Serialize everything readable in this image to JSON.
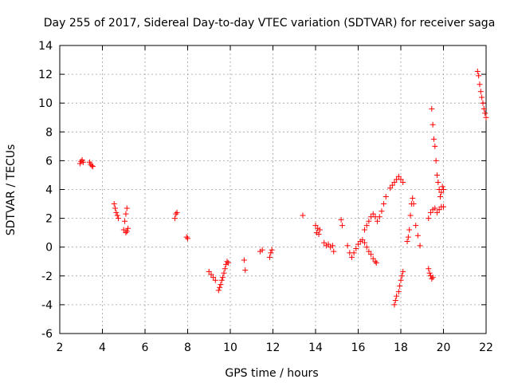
{
  "chart_data": {
    "type": "scatter",
    "title": "Day 255 of 2017, Sidereal Day-to-day VTEC variation (SDTVAR) for receiver saga",
    "xlabel": "GPS time / hours",
    "ylabel": "SDTVAR / TECUs",
    "xlim": [
      2,
      22
    ],
    "ylim": [
      -6,
      14
    ],
    "xticks": [
      2,
      4,
      6,
      8,
      10,
      12,
      14,
      16,
      18,
      20,
      22
    ],
    "yticks": [
      -6,
      -4,
      -2,
      0,
      2,
      4,
      6,
      8,
      10,
      12,
      14
    ],
    "grid": true,
    "marker": "+",
    "color": "#ff0000",
    "series": [
      {
        "name": "SDTVAR",
        "segments": [
          [
            [
              2.95,
              5.8
            ],
            [
              3.0,
              5.95
            ],
            [
              3.05,
              6.05
            ],
            [
              3.1,
              5.9
            ]
          ],
          [
            [
              3.4,
              5.9
            ],
            [
              3.45,
              5.75
            ],
            [
              3.5,
              5.65
            ],
            [
              3.55,
              5.6
            ]
          ],
          [
            [
              4.55,
              3.0
            ],
            [
              4.6,
              2.7
            ],
            [
              4.65,
              2.4
            ],
            [
              4.7,
              2.2
            ],
            [
              4.75,
              2.0
            ]
          ],
          [
            [
              5.0,
              1.2
            ],
            [
              5.05,
              1.8
            ],
            [
              5.1,
              2.3
            ],
            [
              5.15,
              2.7
            ],
            [
              5.1,
              1.0
            ],
            [
              5.15,
              1.1
            ],
            [
              5.2,
              1.3
            ]
          ],
          [
            [
              7.4,
              2.0
            ],
            [
              7.45,
              2.3
            ],
            [
              7.5,
              2.4
            ]
          ],
          [
            [
              7.95,
              0.7
            ],
            [
              8.0,
              0.6
            ]
          ],
          [
            [
              9.0,
              -1.7
            ],
            [
              9.1,
              -1.9
            ],
            [
              9.2,
              -2.1
            ],
            [
              9.3,
              -2.3
            ]
          ],
          [
            [
              9.45,
              -3.0
            ],
            [
              9.5,
              -2.8
            ],
            [
              9.55,
              -2.6
            ],
            [
              9.6,
              -2.3
            ],
            [
              9.65,
              -2.1
            ],
            [
              9.7,
              -1.8
            ],
            [
              9.75,
              -1.5
            ],
            [
              9.8,
              -1.2
            ],
            [
              9.85,
              -1.0
            ],
            [
              9.9,
              -1.1
            ]
          ],
          [
            [
              10.65,
              -0.9
            ],
            [
              10.7,
              -1.6
            ]
          ],
          [
            [
              11.4,
              -0.3
            ],
            [
              11.5,
              -0.2
            ]
          ],
          [
            [
              11.85,
              -0.7
            ],
            [
              11.9,
              -0.4
            ],
            [
              11.95,
              -0.2
            ]
          ],
          [
            [
              13.4,
              2.2
            ]
          ],
          [
            [
              14.0,
              1.5
            ],
            [
              14.05,
              1.0
            ],
            [
              14.1,
              1.3
            ],
            [
              14.15,
              0.9
            ],
            [
              14.2,
              1.2
            ]
          ],
          [
            [
              14.4,
              0.3
            ],
            [
              14.5,
              0.1
            ],
            [
              14.6,
              0.2
            ],
            [
              14.7,
              0.0
            ],
            [
              14.8,
              0.1
            ],
            [
              14.85,
              -0.3
            ]
          ],
          [
            [
              15.2,
              1.9
            ],
            [
              15.25,
              1.5
            ]
          ],
          [
            [
              15.5,
              0.1
            ],
            [
              15.6,
              -0.4
            ],
            [
              15.7,
              -0.7
            ],
            [
              15.8,
              -0.4
            ],
            [
              15.9,
              -0.1
            ],
            [
              16.0,
              0.2
            ],
            [
              16.1,
              0.4
            ],
            [
              16.2,
              0.5
            ],
            [
              16.3,
              0.3
            ],
            [
              16.4,
              0.0
            ],
            [
              16.5,
              -0.3
            ],
            [
              16.6,
              -0.5
            ],
            [
              16.7,
              -0.8
            ],
            [
              16.8,
              -1.0
            ],
            [
              16.85,
              -1.1
            ]
          ],
          [
            [
              16.3,
              1.2
            ],
            [
              16.4,
              1.5
            ],
            [
              16.5,
              1.8
            ],
            [
              16.6,
              2.1
            ],
            [
              16.7,
              2.3
            ],
            [
              16.8,
              2.1
            ],
            [
              16.9,
              1.8
            ],
            [
              17.0,
              2.1
            ],
            [
              17.1,
              2.5
            ],
            [
              17.2,
              3.0
            ],
            [
              17.3,
              3.5
            ]
          ],
          [
            [
              17.5,
              4.1
            ],
            [
              17.6,
              4.3
            ],
            [
              17.7,
              4.5
            ],
            [
              17.8,
              4.7
            ],
            [
              17.9,
              4.9
            ],
            [
              18.0,
              4.7
            ],
            [
              18.1,
              4.5
            ]
          ],
          [
            [
              17.7,
              -4.0
            ],
            [
              17.75,
              -3.7
            ],
            [
              17.8,
              -3.4
            ],
            [
              17.9,
              -3.1
            ],
            [
              17.95,
              -2.7
            ],
            [
              18.0,
              -2.3
            ],
            [
              18.05,
              -2.0
            ],
            [
              18.1,
              -1.7
            ]
          ],
          [
            [
              18.3,
              0.4
            ],
            [
              18.35,
              0.7
            ],
            [
              18.4,
              1.2
            ],
            [
              18.45,
              2.2
            ],
            [
              18.5,
              3.0
            ],
            [
              18.55,
              3.4
            ],
            [
              18.6,
              3.0
            ],
            [
              18.7,
              1.5
            ],
            [
              18.8,
              0.8
            ],
            [
              18.9,
              0.1
            ]
          ],
          [
            [
              19.3,
              -1.5
            ],
            [
              19.35,
              -1.8
            ],
            [
              19.4,
              -2.0
            ],
            [
              19.45,
              -2.2
            ],
            [
              19.5,
              -2.1
            ]
          ],
          [
            [
              19.3,
              2.0
            ],
            [
              19.4,
              2.4
            ],
            [
              19.5,
              2.6
            ],
            [
              19.6,
              2.7
            ],
            [
              19.7,
              2.4
            ],
            [
              19.8,
              2.6
            ],
            [
              19.9,
              2.8
            ],
            [
              20.0,
              2.8
            ]
          ],
          [
            [
              19.45,
              9.6
            ],
            [
              19.5,
              8.5
            ],
            [
              19.55,
              7.5
            ],
            [
              19.6,
              7.0
            ],
            [
              19.65,
              6.0
            ],
            [
              19.7,
              5.0
            ],
            [
              19.75,
              4.5
            ],
            [
              19.8,
              4.0
            ],
            [
              19.85,
              3.5
            ],
            [
              19.9,
              3.8
            ],
            [
              19.95,
              4.2
            ],
            [
              20.0,
              4.0
            ]
          ],
          [
            [
              21.6,
              12.2
            ],
            [
              21.65,
              11.9
            ],
            [
              21.7,
              11.3
            ],
            [
              21.75,
              10.8
            ],
            [
              21.8,
              10.4
            ],
            [
              21.85,
              10.0
            ],
            [
              21.9,
              9.6
            ],
            [
              21.95,
              9.3
            ],
            [
              22.0,
              9.0
            ]
          ]
        ]
      }
    ]
  }
}
